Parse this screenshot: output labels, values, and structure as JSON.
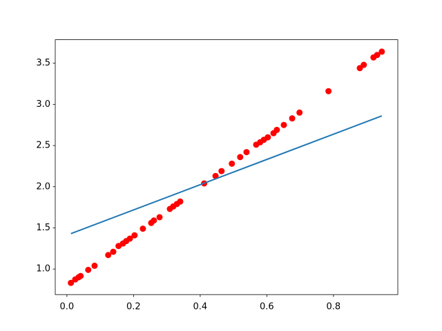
{
  "chart_data": {
    "type": "scatter",
    "xlim": [
      -0.035,
      0.993
    ],
    "ylim": [
      0.69,
      3.785
    ],
    "xticks": [
      {
        "value": 0,
        "label": "0.0"
      },
      0.2,
      0.4,
      0.6,
      0.8
    ],
    "yticks": [
      {
        "value": 1,
        "label": "1.0"
      },
      1.5,
      {
        "value": 2,
        "label": "2.0"
      },
      2.5,
      {
        "value": 3,
        "label": "3.0"
      },
      3.5
    ],
    "grid": false,
    "series": [
      {
        "type": "scatter",
        "color": "#ff0000",
        "x": [
          0.012,
          0.025,
          0.035,
          0.041,
          0.064,
          0.083,
          0.124,
          0.139,
          0.155,
          0.168,
          0.178,
          0.189,
          0.203,
          0.228,
          0.253,
          0.261,
          0.278,
          0.309,
          0.319,
          0.33,
          0.34,
          0.412,
          0.446,
          0.464,
          0.495,
          0.52,
          0.539,
          0.568,
          0.58,
          0.591,
          0.603,
          0.62,
          0.63,
          0.651,
          0.676,
          0.698,
          0.785,
          0.879,
          0.891,
          0.92,
          0.931,
          0.945
        ],
        "values": [
          0.832,
          0.874,
          0.9,
          0.916,
          0.99,
          1.04,
          1.17,
          1.21,
          1.28,
          1.31,
          1.34,
          1.37,
          1.41,
          1.49,
          1.56,
          1.59,
          1.63,
          1.73,
          1.76,
          1.79,
          1.82,
          2.04,
          2.13,
          2.19,
          2.28,
          2.36,
          2.42,
          2.51,
          2.54,
          2.57,
          2.6,
          2.65,
          2.69,
          2.75,
          2.83,
          2.9,
          3.16,
          3.44,
          3.48,
          3.57,
          3.6,
          3.64
        ]
      },
      {
        "type": "line",
        "color": "#1f77b4",
        "x": [
          0.012,
          0.945
        ],
        "values": [
          1.43,
          2.86
        ]
      }
    ]
  }
}
